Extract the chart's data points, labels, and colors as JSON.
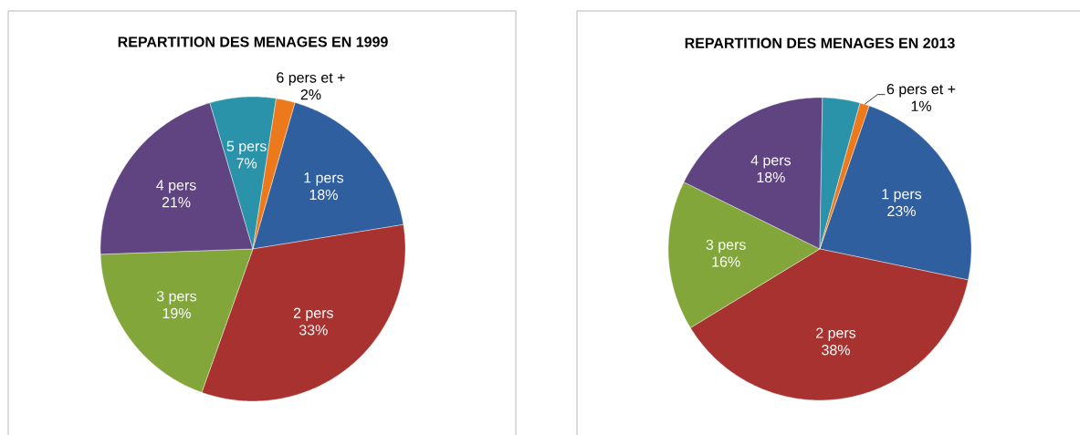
{
  "chart_data": [
    {
      "type": "pie",
      "title": "REPARTITION DES MENAGES EN 1999",
      "categories": [
        "1 pers",
        "2 pers",
        "3 pers",
        "4 pers",
        "5 pers",
        "6 pers  et +"
      ],
      "values": [
        18,
        33,
        19,
        21,
        7,
        2
      ],
      "colors": [
        "#2f5f9e",
        "#a8322f",
        "#82a63a",
        "#604482",
        "#2a93aa",
        "#ec7a1c"
      ],
      "value_labels": [
        "18%",
        "33%",
        "19%",
        "21%",
        "7%",
        "2%"
      ]
    },
    {
      "type": "pie",
      "title": "REPARTITION DES MENAGES EN 2013",
      "categories": [
        "1 pers",
        "2 pers",
        "3 pers",
        "4 pers",
        null,
        "6 pers  et +"
      ],
      "values": [
        23,
        38,
        16,
        18,
        4,
        1
      ],
      "colors": [
        "#2f5f9e",
        "#a8322f",
        "#82a63a",
        "#604482",
        "#2a93aa",
        "#ec7a1c"
      ],
      "value_labels": [
        "23%",
        "38%",
        "16%",
        "18%",
        null,
        "1%"
      ]
    }
  ]
}
